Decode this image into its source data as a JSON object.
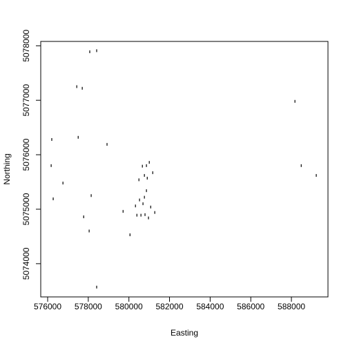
{
  "chart_data": {
    "type": "scatter",
    "x_label": "Easting",
    "y_label": "Northing",
    "x": [
      578070,
      578410,
      577430,
      577700,
      588170,
      576200,
      577500,
      578920,
      576170,
      581000,
      580860,
      580660,
      581170,
      580760,
      580900,
      580490,
      588480,
      589220,
      576750,
      580860,
      576270,
      578140,
      580760,
      580520,
      580690,
      580320,
      581070,
      579710,
      581270,
      580390,
      580590,
      580790,
      577770,
      580960,
      578040,
      580050,
      578410
    ],
    "y": [
      5077890,
      5077910,
      5077250,
      5077220,
      5076980,
      5076280,
      5076320,
      5076190,
      5075800,
      5075860,
      5075800,
      5075790,
      5075670,
      5075620,
      5075570,
      5075540,
      5075800,
      5075620,
      5075480,
      5075340,
      5075190,
      5075250,
      5075220,
      5075170,
      5075100,
      5075060,
      5075040,
      5074960,
      5074940,
      5074890,
      5074890,
      5074900,
      5074860,
      5074840,
      5074600,
      5074530,
      5073570
    ],
    "color": "#000000",
    "xlim": [
      575660,
      589800
    ],
    "ylim": [
      5073390,
      5078080
    ],
    "xticks": [
      576000,
      578000,
      580000,
      582000,
      584000,
      586000,
      588000
    ],
    "yticks": [
      5074000,
      5075000,
      5076000,
      5077000,
      5078000
    ]
  }
}
